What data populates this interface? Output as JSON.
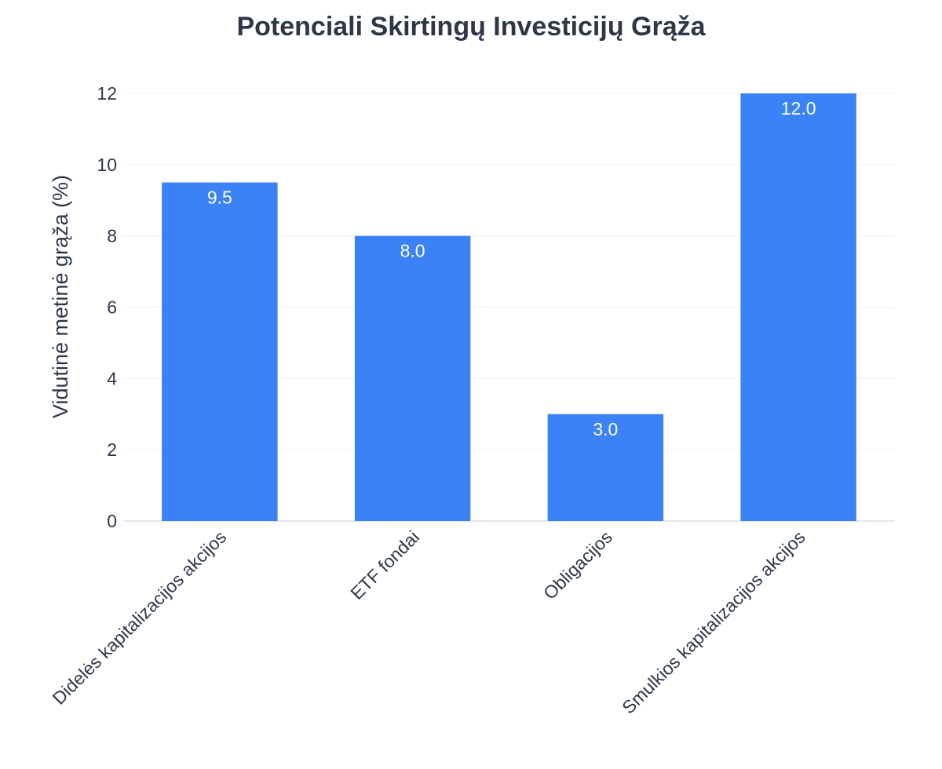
{
  "chart_data": {
    "type": "bar",
    "title": "Potenciali Skirtingų Investicijų Grąža",
    "xlabel": "",
    "ylabel": "Vidutinė metinė grąža (%)",
    "categories": [
      "Didelės kapitalizacijos akcijos",
      "ETF fondai",
      "Obligacijos",
      "Smulkios kapitalizacijos akcijos"
    ],
    "values": [
      9.5,
      8.0,
      3.0,
      12.0
    ],
    "data_labels": [
      "9.5",
      "8.0",
      "3.0",
      "12.0"
    ],
    "ylim": [
      0,
      12
    ],
    "yticks": [
      "0",
      "2",
      "4",
      "6",
      "8",
      "10",
      "12"
    ],
    "grid": true,
    "colors": {
      "bar": "#3b82f6",
      "text": "#2d3748",
      "grid": "#edf2f7",
      "label": "#ffffff"
    }
  }
}
